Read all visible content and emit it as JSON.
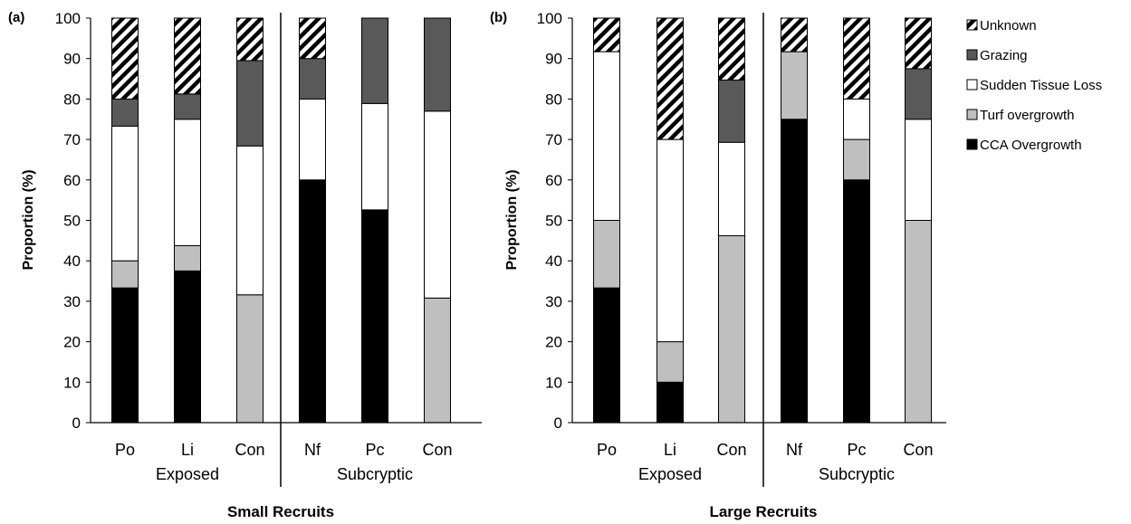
{
  "chart_data": [
    {
      "type": "bar",
      "stacked": true,
      "panel_label": "(a)",
      "xlabel": "Small Recruits",
      "ylabel": "Proportion (%)",
      "ylim": [
        0,
        100
      ],
      "yticks": [
        0,
        10,
        20,
        30,
        40,
        50,
        60,
        70,
        80,
        90,
        100
      ],
      "categories": [
        "Po",
        "Li",
        "Con",
        "Nf",
        "Pc",
        "Con"
      ],
      "groups": [
        {
          "name": "Exposed",
          "categories": [
            "Po",
            "Li",
            "Con"
          ]
        },
        {
          "name": "Subcryptic",
          "categories": [
            "Nf",
            "Pc",
            "Con"
          ]
        }
      ],
      "series": [
        {
          "name": "CCA Overgrowth",
          "values": [
            33.3,
            37.5,
            0,
            60,
            52.6,
            0
          ]
        },
        {
          "name": "Turf overgrowth",
          "values": [
            6.7,
            6.25,
            31.6,
            0,
            0,
            30.8
          ]
        },
        {
          "name": "Sudden Tissue Loss",
          "values": [
            33.3,
            31.25,
            36.8,
            20,
            26.3,
            46.2
          ]
        },
        {
          "name": "Grazing",
          "values": [
            6.7,
            6.25,
            21.1,
            10,
            21.1,
            23.0
          ]
        },
        {
          "name": "Unknown",
          "values": [
            20.0,
            18.75,
            10.5,
            10,
            0,
            0
          ]
        }
      ]
    },
    {
      "type": "bar",
      "stacked": true,
      "panel_label": "(b)",
      "xlabel": "Large Recruits",
      "ylabel": "Proportion (%)",
      "ylim": [
        0,
        100
      ],
      "yticks": [
        0,
        10,
        20,
        30,
        40,
        50,
        60,
        70,
        80,
        90,
        100
      ],
      "categories": [
        "Po",
        "Li",
        "Con",
        "Nf",
        "Pc",
        "Con"
      ],
      "groups": [
        {
          "name": "Exposed",
          "categories": [
            "Po",
            "Li",
            "Con"
          ]
        },
        {
          "name": "Subcryptic",
          "categories": [
            "Nf",
            "Pc",
            "Con"
          ]
        }
      ],
      "series": [
        {
          "name": "CCA Overgrowth",
          "values": [
            33.3,
            10,
            0,
            75,
            60,
            0
          ]
        },
        {
          "name": "Turf overgrowth",
          "values": [
            16.7,
            10,
            46.2,
            16.7,
            10,
            50
          ]
        },
        {
          "name": "Sudden Tissue Loss",
          "values": [
            41.7,
            50,
            23.1,
            0,
            10,
            25
          ]
        },
        {
          "name": "Grazing",
          "values": [
            0,
            0,
            15.4,
            0,
            0,
            12.5
          ]
        },
        {
          "name": "Unknown",
          "values": [
            8.3,
            30,
            15.3,
            8.3,
            20,
            12.5
          ]
        }
      ]
    }
  ],
  "legend": {
    "position": "right",
    "entries": [
      "Unknown",
      "Grazing",
      "Sudden Tissue Loss",
      "Turf overgrowth",
      "CCA Overgrowth"
    ]
  },
  "colors": {
    "CCA Overgrowth": "#000000",
    "Turf overgrowth": "#bfbfbf",
    "Sudden Tissue Loss": "#ffffff",
    "Grazing": "#595959",
    "Unknown": "hatch"
  }
}
